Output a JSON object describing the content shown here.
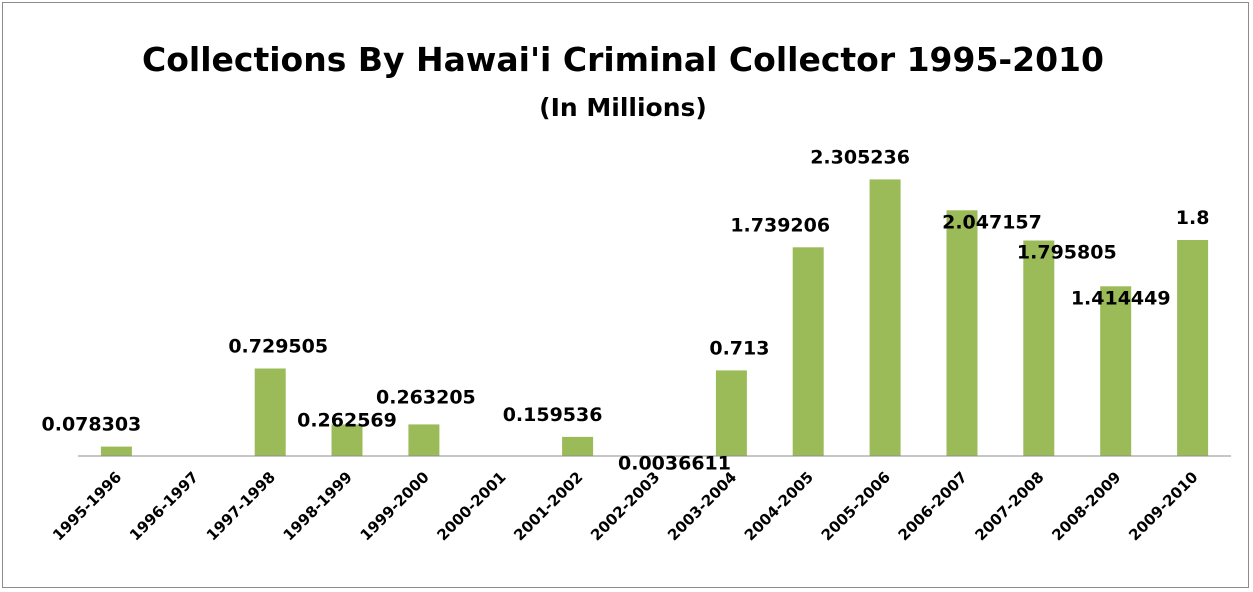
{
  "chart_data": {
    "type": "bar",
    "title": "Collections By Hawai'i Criminal Collector 1995-2010",
    "subtitle": "(In Millions)",
    "categories": [
      "1995-1996",
      "1996-1997",
      "1997-1998",
      "1998-1999",
      "1999-2000",
      "2000-2001",
      "2001-2002",
      "2002-2003",
      "2003-2004",
      "2004-2005",
      "2005-2006",
      "2006-2007",
      "2007-2008",
      "2008-2009",
      "2009-2010"
    ],
    "values": [
      0.078303,
      null,
      0.729505,
      0.262569,
      0.263205,
      null,
      0.159536,
      0.0036611,
      0.713,
      1.739206,
      2.305236,
      2.047157,
      1.795805,
      1.414449,
      1.8
    ],
    "value_labels": [
      "0.078303",
      "",
      "0.729505",
      "0.262569",
      "0.263205",
      "",
      "0.159536",
      "0.0036611",
      "0.713",
      "1.739206",
      "2.305236",
      "2.047157",
      "1.795805",
      "1.414449",
      "1.8"
    ],
    "xlabel": "",
    "ylabel": "",
    "ylim": [
      0,
      2.5
    ],
    "grid": false,
    "legend": "none",
    "bar_color": "#9BBB59"
  }
}
